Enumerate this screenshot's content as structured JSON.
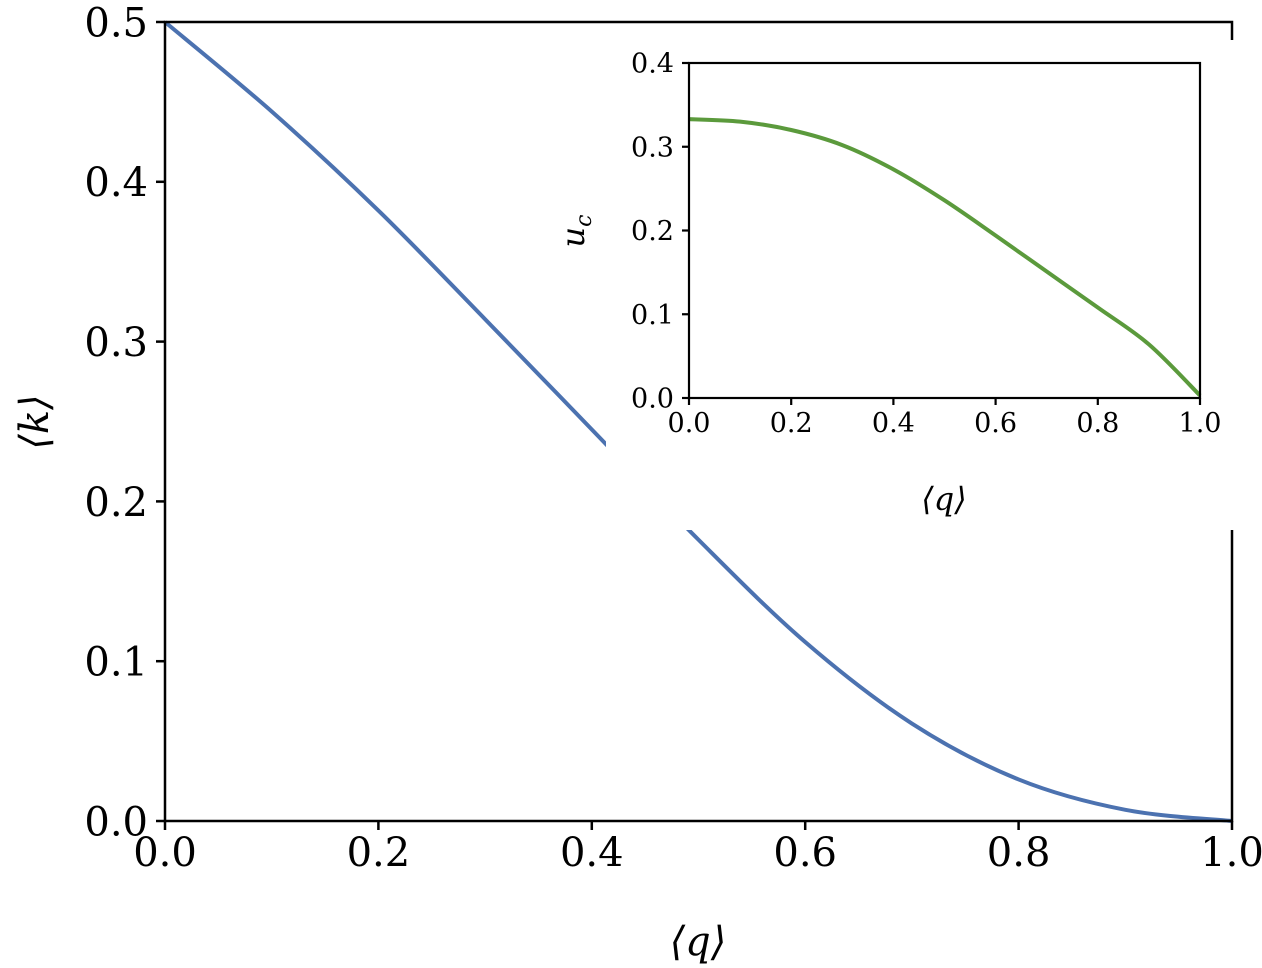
{
  "chart_data": [
    {
      "type": "line",
      "title": "",
      "xlabel": "⟨q⟩",
      "ylabel": "⟨k⟩",
      "xlim": [
        0.0,
        1.0
      ],
      "ylim": [
        0.0,
        0.5
      ],
      "xticks": [
        "0.0",
        "0.2",
        "0.4",
        "0.6",
        "0.8",
        "1.0"
      ],
      "yticks": [
        "0.0",
        "0.1",
        "0.2",
        "0.3",
        "0.4",
        "0.5"
      ],
      "grid": false,
      "series": [
        {
          "color": "#4c72b0",
          "x": [
            0.0,
            0.1,
            0.2,
            0.3,
            0.4,
            0.5,
            0.6,
            0.7,
            0.8,
            0.9,
            1.0
          ],
          "y": [
            0.5,
            0.444,
            0.382,
            0.314,
            0.245,
            0.176,
            0.112,
            0.061,
            0.026,
            0.007,
            0.0
          ]
        }
      ]
    },
    {
      "type": "line",
      "title": "",
      "xlabel": "⟨q⟩",
      "ylabel": "u_c",
      "xlim": [
        0.0,
        1.0
      ],
      "ylim": [
        0.0,
        0.4
      ],
      "xticks": [
        "0.0",
        "0.2",
        "0.4",
        "0.6",
        "0.8",
        "1.0"
      ],
      "yticks": [
        "0.0",
        "0.1",
        "0.2",
        "0.3",
        "0.4"
      ],
      "grid": false,
      "series": [
        {
          "color": "#5b9a3c",
          "x": [
            0.0,
            0.1,
            0.2,
            0.3,
            0.4,
            0.5,
            0.6,
            0.7,
            0.8,
            0.9,
            1.0
          ],
          "y": [
            0.333,
            0.33,
            0.32,
            0.302,
            0.273,
            0.236,
            0.194,
            0.151,
            0.108,
            0.064,
            0.003
          ]
        }
      ]
    }
  ]
}
